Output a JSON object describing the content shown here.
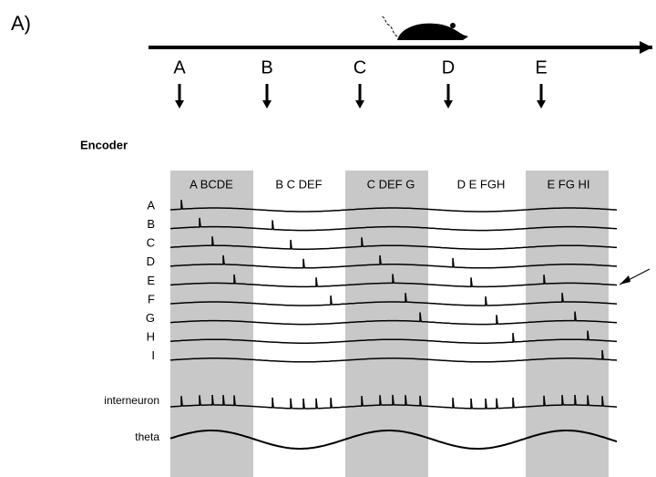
{
  "panel_label": "A)",
  "track": {
    "positions": [
      "A",
      "B",
      "C",
      "D",
      "E"
    ]
  },
  "encoder": {
    "title": "Encoder",
    "cycles": [
      "A BCDE",
      "B C DEF",
      "C DEF G",
      "D E FGH",
      "E FG HI"
    ],
    "rows": [
      "A",
      "B",
      "C",
      "D",
      "E",
      "F",
      "G",
      "H",
      "I"
    ],
    "interneuron_label": "interneuron",
    "theta_label": "theta"
  }
}
